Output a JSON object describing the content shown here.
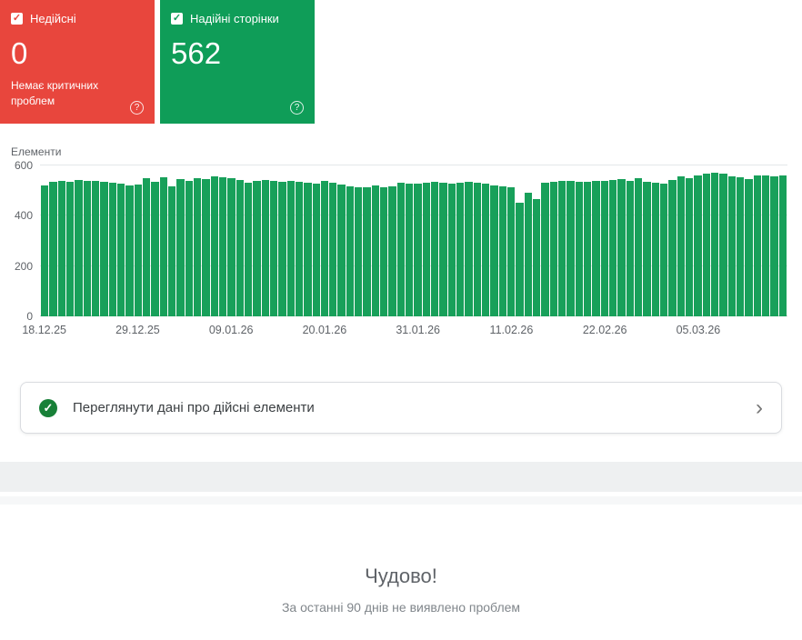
{
  "cards": {
    "invalid": {
      "label": "Недійсні",
      "value": "0",
      "subtitle": "Немає критичних проблем",
      "color": "#e8463d"
    },
    "valid": {
      "label": "Надійні сторінки",
      "value": "562",
      "color": "#0f9d58"
    }
  },
  "icons": {
    "checkbox_check": "✓",
    "help": "?",
    "banner_check": "✓",
    "chevron_right": "›"
  },
  "chart_data": {
    "type": "bar",
    "title": "Елементи",
    "xlabel": "",
    "ylabel": "",
    "ylim": [
      0,
      600
    ],
    "yticks": [
      0,
      200,
      400,
      600
    ],
    "grid": true,
    "legend": "none",
    "x_labels": [
      "18.12.25",
      "29.12.25",
      "09.01.26",
      "20.01.26",
      "31.01.26",
      "11.02.26",
      "22.02.26",
      "05.03.26"
    ],
    "x_label_indices": [
      0,
      11,
      22,
      33,
      44,
      55,
      66,
      77
    ],
    "series": [
      {
        "name": "Надійні сторінки",
        "color": "#18a05a",
        "values": [
          522,
          536,
          540,
          534,
          542,
          538,
          540,
          536,
          532,
          528,
          520,
          524,
          548,
          534,
          552,
          518,
          546,
          540,
          550,
          546,
          556,
          552,
          548,
          544,
          532,
          540,
          544,
          538,
          534,
          540,
          536,
          532,
          528,
          540,
          530,
          524,
          518,
          514,
          512,
          520,
          512,
          516,
          530,
          526,
          528,
          532,
          534,
          530,
          528,
          532,
          534,
          530,
          526,
          522,
          516,
          512,
          452,
          490,
          468,
          532,
          536,
          540,
          538,
          534,
          536,
          540,
          538,
          542,
          546,
          540,
          548,
          536,
          530,
          526,
          542,
          556,
          548,
          560,
          568,
          572,
          566,
          558,
          552,
          546,
          560,
          562,
          558,
          562
        ]
      }
    ]
  },
  "banner": {
    "text": "Переглянути дані про дійсні елементи",
    "icon_color": "#188038"
  },
  "footer": {
    "title": "Чудово!",
    "subtitle": "За останні 90 днів не виявлено проблем"
  }
}
